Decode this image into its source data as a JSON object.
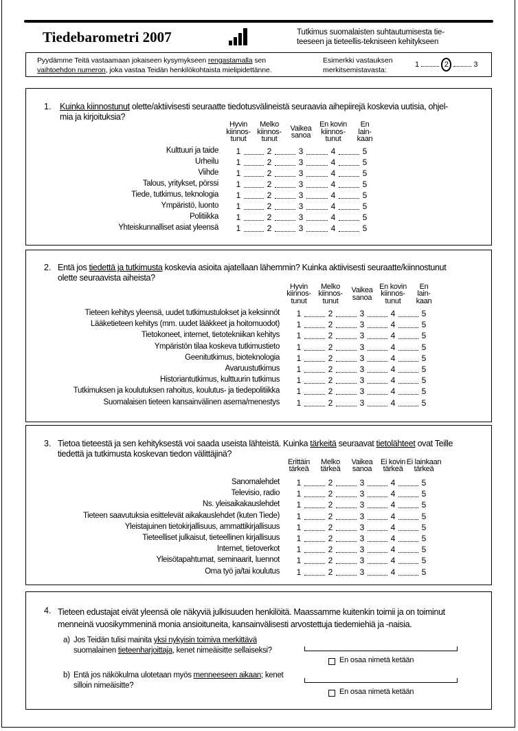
{
  "header": {
    "title": "Tiedebarometri 2007",
    "logo_icon": "bar-chart-icon",
    "subtitle_lines": [
      "Tutkimus suomalaisten suhtautumisesta tie-",
      "teeseen ja tieteellis-tekniseen kehitykseen"
    ]
  },
  "instructions": {
    "lines": [
      [
        {
          "t": "Pyydämme Teitä vastaamaan jokaiseen kysymykseen "
        },
        {
          "t": "rengastamalla",
          "u": true
        },
        {
          "t": " sen"
        }
      ],
      [
        {
          "t": "vaihtoehdon numeron",
          "u": true
        },
        {
          "t": ", joka vastaa Teidän henkilökohtaista mielipidettänne."
        }
      ]
    ],
    "example_label": [
      "Esimerkki vastauksen",
      "merkitsemistavasta:"
    ],
    "example_scale": [
      "1",
      "2",
      "3"
    ],
    "example_circled": "2"
  },
  "questions": [
    {
      "number": "1.",
      "lines": [
        [
          {
            "t": "Kuinka kiinnostunut",
            "u": true
          },
          {
            "t": " olette/aktiivisesti seuraatte tiedotusvälineistä seuraavia aihepiirejä koskevia uutisia, ohjel-"
          }
        ],
        [
          {
            "t": "mia ja kirjoituksia?"
          }
        ]
      ],
      "headers": [
        [
          "Hyvin",
          "kiinnos-",
          "tunut"
        ],
        [
          "Melko",
          "kiinnos-",
          "tunut"
        ],
        [
          "Vaikea",
          "sanoa"
        ],
        [
          "En kovin",
          "kiinnos-",
          "tunut"
        ],
        [
          "En",
          "lain-",
          "kaan"
        ]
      ],
      "items": [
        "Kulttuuri ja taide",
        "Urheilu",
        "Viihde",
        "Talous, yritykset, pörssi",
        "Tiede, tutkimus, teknologia",
        "Ympäristö, luonto",
        "Politiikka",
        "Yhteiskunnalliset asiat yleensä"
      ]
    },
    {
      "number": "2.",
      "lines": [
        [
          {
            "t": "Entä jos "
          },
          {
            "t": "tiedettä ja tutkimusta",
            "u": true
          },
          {
            "t": " koskevia asioita ajatellaan lähemmin?  Kuinka aktiivisesti seuraatte/kiinnostunut"
          }
        ],
        [
          {
            "t": "olette seuraavista aiheista?"
          }
        ]
      ],
      "headers": [
        [
          "Hyvin",
          "kiinnos-",
          "tunut"
        ],
        [
          "Melko",
          "kiinnos-",
          "tunut"
        ],
        [
          "Vaikea",
          "sanoa"
        ],
        [
          "En kovin",
          "kiinnos-",
          "tunut"
        ],
        [
          "En",
          "lain-",
          "kaan"
        ]
      ],
      "items": [
        "Tieteen kehitys yleensä, uudet tutkimustulokset ja keksinnöt",
        "Lääketieteen kehitys (mm. uudet lääkkeet ja hoitomuodot)",
        "Tietokoneet, internet, tietotekniikan kehitys",
        "Ympäristön tilaa koskeva tutkimustieto",
        "Geenitutkimus, bioteknologia",
        "Avaruustutkimus",
        "Historiantutkimus, kulttuurin tutkimus",
        "Tutkimuksen ja koulutuksen rahoitus, koulutus- ja tiedepolitiikka",
        "Suomalaisen tieteen kansainvälinen asema/menestys"
      ]
    },
    {
      "number": "3.",
      "lines": [
        [
          {
            "t": "Tietoa tieteestä ja sen kehityksestä voi saada useista lähteistä. Kuinka "
          },
          {
            "t": "tärkeitä",
            "u": true
          },
          {
            "t": " seuraavat "
          },
          {
            "t": "tietolähteet",
            "u": true
          },
          {
            "t": " ovat Teille"
          }
        ],
        [
          {
            "t": "tiedettä ja tutkimusta koskevan tiedon välittäjinä?"
          }
        ]
      ],
      "headers": [
        [
          "Erittäin",
          "tärkeä"
        ],
        [
          "Melko",
          "tärkeä"
        ],
        [
          "Vaikea",
          "sanoa"
        ],
        [
          "Ei kovin",
          "tärkeä"
        ],
        [
          "Ei lainkaan",
          "tärkeä"
        ]
      ],
      "items": [
        "Sanomalehdet",
        "Televisio, radio",
        "Ns. yleisaikakauslehdet",
        "Tieteen saavutuksia esittelevät aikakauslehdet (kuten Tiede)",
        "Yleistajuinen tietokirjallisuus, ammattikirjallisuus",
        "Tieteelliset julkaisut, tieteellinen kirjallisuus",
        "Internet, tietoverkot",
        "Yleisötapahtumat, seminaarit, luennot",
        "Oma työ ja/tai koulutus"
      ]
    }
  ],
  "scale": [
    "1",
    "2",
    "3",
    "4",
    "5"
  ],
  "q4": {
    "number": "4.",
    "lines": [
      [
        {
          "t": "Tieteen edustajat eivät yleensä ole näkyviä julkisuuden henkilöitä. Maassamme kuitenkin toimii ja on toiminut"
        }
      ],
      [
        {
          "t": "menneinä vuosikymmeninä monia ansioituneita, kansainvälisesti arvostettuja tiedemiehiä ja -naisia."
        }
      ]
    ],
    "subs": [
      {
        "label": "a)",
        "lines": [
          [
            {
              "t": "Jos Teidän tulisi mainita "
            },
            {
              "t": "yksi nykyisin toimiva merkittävä",
              "u": true
            }
          ],
          [
            {
              "t": "suomalainen "
            },
            {
              "t": "tieteenharjoittaja",
              "u": true
            },
            {
              "t": ", kenet nimeäisitte sellaiseksi?"
            }
          ]
        ],
        "answer": "",
        "checkbox_label": "En osaa nimetä ketään"
      },
      {
        "label": "b)",
        "lines": [
          [
            {
              "t": "Entä jos näkökulma ulotetaan myös "
            },
            {
              "t": "menneeseen aikaan",
              "u": true
            },
            {
              "t": "; kenet"
            }
          ],
          [
            {
              "t": "silloin nimeäisitte?"
            }
          ]
        ],
        "answer": "",
        "checkbox_label": "En osaa nimetä ketään"
      }
    ]
  }
}
